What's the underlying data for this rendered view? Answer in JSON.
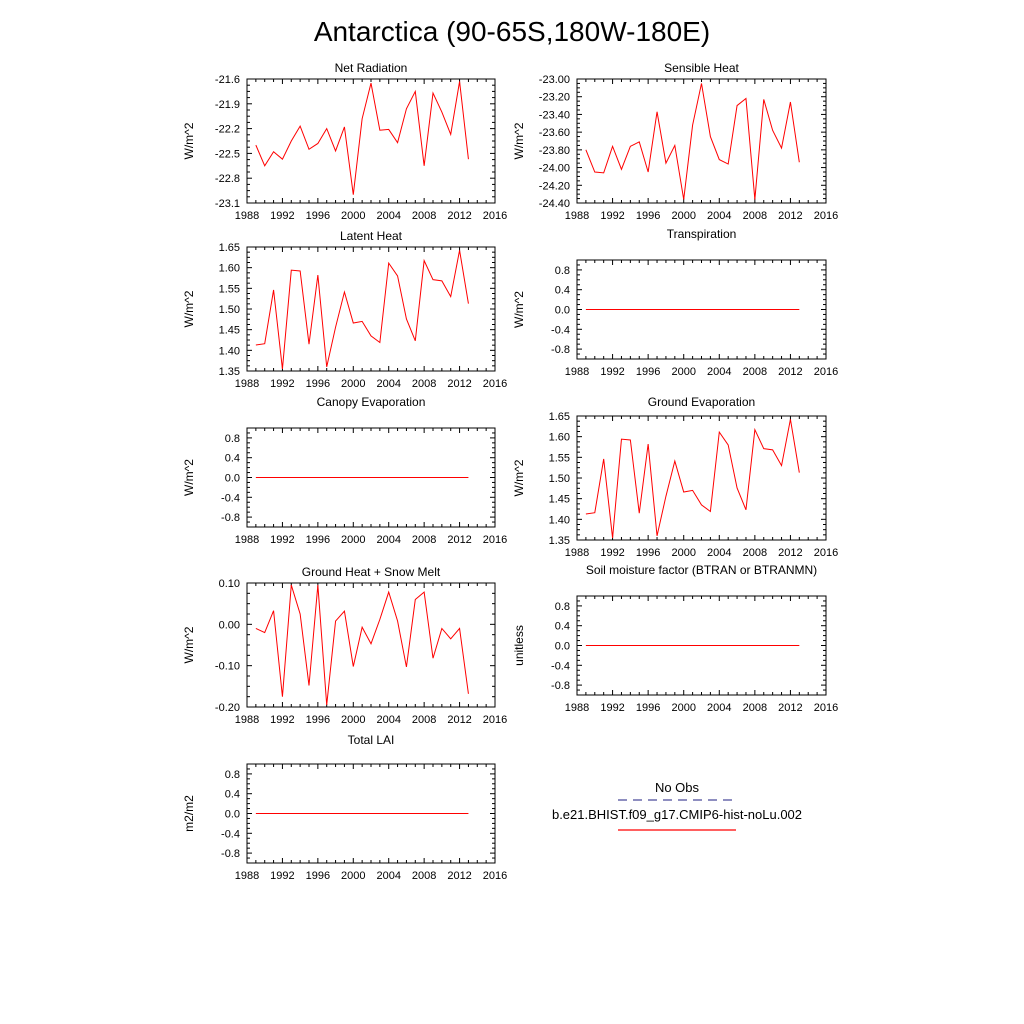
{
  "title": "Antarctica (90-65S,180W-180E)",
  "colors": {
    "line": "#ff0000",
    "obs": "#4a4a9a",
    "axis": "#000000"
  },
  "legend": {
    "obs_label": "No Obs",
    "model_label": "b.e21.BHIST.f09_g17.CMIP6-hist-noLu.002"
  },
  "chart_data": [
    {
      "type": "line",
      "title": "Net Radiation",
      "ylabel": "W/m^2",
      "xlim": [
        1988,
        2016
      ],
      "ylim": [
        -23.1,
        -21.6
      ],
      "xticks": [
        1988,
        1992,
        1996,
        2000,
        2004,
        2008,
        2012,
        2016
      ],
      "yticks": [
        -21.6,
        -21.9,
        -22.2,
        -22.5,
        -22.8,
        -23.1
      ],
      "ytick_labels": [
        "-21.6",
        "-21.9",
        "-22.2",
        "-22.5",
        "-22.8",
        "-23.1"
      ],
      "series": [
        {
          "x": [
            1989,
            1990,
            1991,
            1992,
            1993,
            1994,
            1995,
            1996,
            1997,
            1998,
            1999,
            2000,
            2001,
            2002,
            2003,
            2004,
            2005,
            2006,
            2007,
            2008,
            2009,
            2010,
            2011,
            2012,
            2013
          ],
          "values": [
            -22.4,
            -22.65,
            -22.48,
            -22.57,
            -22.35,
            -22.17,
            -22.45,
            -22.38,
            -22.2,
            -22.47,
            -22.18,
            -23.0,
            -22.08,
            -21.65,
            -22.22,
            -22.21,
            -22.37,
            -21.96,
            -21.75,
            -22.65,
            -21.77,
            -22.0,
            -22.27,
            -21.63,
            -22.57
          ]
        }
      ]
    },
    {
      "type": "line",
      "title": "Sensible Heat",
      "ylabel": "W/m^2",
      "xlim": [
        1988,
        2016
      ],
      "ylim": [
        -24.4,
        -23.0
      ],
      "xticks": [
        1988,
        1992,
        1996,
        2000,
        2004,
        2008,
        2012,
        2016
      ],
      "yticks": [
        -23.0,
        -23.2,
        -23.4,
        -23.6,
        -23.8,
        -24.0,
        -24.2,
        -24.4
      ],
      "ytick_labels": [
        "-23.00",
        "-23.20",
        "-23.40",
        "-23.60",
        "-23.80",
        "-24.00",
        "-24.20",
        "-24.40"
      ],
      "series": [
        {
          "x": [
            1989,
            1990,
            1991,
            1992,
            1993,
            1994,
            1995,
            1996,
            1997,
            1998,
            1999,
            2000,
            2001,
            2002,
            2003,
            2004,
            2005,
            2006,
            2007,
            2008,
            2009,
            2010,
            2011,
            2012,
            2013
          ],
          "values": [
            -23.8,
            -24.05,
            -24.06,
            -23.76,
            -24.02,
            -23.76,
            -23.71,
            -24.05,
            -23.37,
            -23.95,
            -23.75,
            -24.36,
            -23.52,
            -23.05,
            -23.65,
            -23.91,
            -23.96,
            -23.3,
            -23.22,
            -24.36,
            -23.23,
            -23.58,
            -23.78,
            -23.26,
            -23.94
          ]
        }
      ]
    },
    {
      "type": "line",
      "title": "Latent Heat",
      "ylabel": "W/m^2",
      "xlim": [
        1988,
        2016
      ],
      "ylim": [
        1.35,
        1.65
      ],
      "xticks": [
        1988,
        1992,
        1996,
        2000,
        2004,
        2008,
        2012,
        2016
      ],
      "yticks": [
        1.35,
        1.4,
        1.45,
        1.5,
        1.55,
        1.6,
        1.65
      ],
      "ytick_labels": [
        "1.35",
        "1.40",
        "1.45",
        "1.50",
        "1.55",
        "1.60",
        "1.65"
      ],
      "series": [
        {
          "x": [
            1989,
            1990,
            1991,
            1992,
            1993,
            1994,
            1995,
            1996,
            1997,
            1998,
            1999,
            2000,
            2001,
            2002,
            2003,
            2004,
            2005,
            2006,
            2007,
            2008,
            2009,
            2010,
            2011,
            2012,
            2013
          ],
          "values": [
            1.413,
            1.416,
            1.546,
            1.355,
            1.594,
            1.592,
            1.415,
            1.582,
            1.36,
            1.456,
            1.541,
            1.466,
            1.47,
            1.435,
            1.419,
            1.611,
            1.58,
            1.476,
            1.423,
            1.617,
            1.571,
            1.568,
            1.53,
            1.642,
            1.513
          ]
        }
      ]
    },
    {
      "type": "line",
      "title": "Transpiration",
      "ylabel": "W/m^2",
      "xlim": [
        1988,
        2016
      ],
      "ylim": [
        -1.0,
        1.0
      ],
      "xticks": [
        1988,
        1992,
        1996,
        2000,
        2004,
        2008,
        2012,
        2016
      ],
      "yticks": [
        0.8,
        0.4,
        0.0,
        -0.4,
        -0.8
      ],
      "ytick_labels": [
        "0.8",
        "0.4",
        "0.0",
        "-0.4",
        "-0.8"
      ],
      "series": [
        {
          "x": [
            1989,
            1990,
            1991,
            1992,
            1993,
            1994,
            1995,
            1996,
            1997,
            1998,
            1999,
            2000,
            2001,
            2002,
            2003,
            2004,
            2005,
            2006,
            2007,
            2008,
            2009,
            2010,
            2011,
            2012,
            2013
          ],
          "values": [
            0,
            0,
            0,
            0,
            0,
            0,
            0,
            0,
            0,
            0,
            0,
            0,
            0,
            0,
            0,
            0,
            0,
            0,
            0,
            0,
            0,
            0,
            0,
            0,
            0
          ]
        }
      ]
    },
    {
      "type": "line",
      "title": "Canopy Evaporation",
      "ylabel": "W/m^2",
      "xlim": [
        1988,
        2016
      ],
      "ylim": [
        -1.0,
        1.0
      ],
      "xticks": [
        1988,
        1992,
        1996,
        2000,
        2004,
        2008,
        2012,
        2016
      ],
      "yticks": [
        0.8,
        0.4,
        0.0,
        -0.4,
        -0.8
      ],
      "ytick_labels": [
        "0.8",
        "0.4",
        "0.0",
        "-0.4",
        "-0.8"
      ],
      "series": [
        {
          "x": [
            1989,
            1990,
            1991,
            1992,
            1993,
            1994,
            1995,
            1996,
            1997,
            1998,
            1999,
            2000,
            2001,
            2002,
            2003,
            2004,
            2005,
            2006,
            2007,
            2008,
            2009,
            2010,
            2011,
            2012,
            2013
          ],
          "values": [
            0,
            0,
            0,
            0,
            0,
            0,
            0,
            0,
            0,
            0,
            0,
            0,
            0,
            0,
            0,
            0,
            0,
            0,
            0,
            0,
            0,
            0,
            0,
            0,
            0
          ]
        }
      ]
    },
    {
      "type": "line",
      "title": "Ground Evaporation",
      "ylabel": "W/m^2",
      "xlim": [
        1988,
        2016
      ],
      "ylim": [
        1.35,
        1.65
      ],
      "xticks": [
        1988,
        1992,
        1996,
        2000,
        2004,
        2008,
        2012,
        2016
      ],
      "yticks": [
        1.35,
        1.4,
        1.45,
        1.5,
        1.55,
        1.6,
        1.65
      ],
      "ytick_labels": [
        "1.35",
        "1.40",
        "1.45",
        "1.50",
        "1.55",
        "1.60",
        "1.65"
      ],
      "series": [
        {
          "x": [
            1989,
            1990,
            1991,
            1992,
            1993,
            1994,
            1995,
            1996,
            1997,
            1998,
            1999,
            2000,
            2001,
            2002,
            2003,
            2004,
            2005,
            2006,
            2007,
            2008,
            2009,
            2010,
            2011,
            2012,
            2013
          ],
          "values": [
            1.413,
            1.416,
            1.546,
            1.355,
            1.594,
            1.592,
            1.415,
            1.582,
            1.36,
            1.456,
            1.541,
            1.466,
            1.47,
            1.435,
            1.419,
            1.611,
            1.58,
            1.476,
            1.423,
            1.617,
            1.571,
            1.568,
            1.53,
            1.642,
            1.513
          ]
        }
      ]
    },
    {
      "type": "line",
      "title": "Ground Heat + Snow Melt",
      "ylabel": "W/m^2",
      "xlim": [
        1988,
        2016
      ],
      "ylim": [
        -0.2,
        0.1
      ],
      "xticks": [
        1988,
        1992,
        1996,
        2000,
        2004,
        2008,
        2012,
        2016
      ],
      "yticks": [
        0.1,
        0.0,
        -0.1,
        -0.2
      ],
      "ytick_labels": [
        "0.10",
        "0.00",
        "-0.10",
        "-0.20"
      ],
      "series": [
        {
          "x": [
            1989,
            1990,
            1991,
            1992,
            1993,
            1994,
            1995,
            1996,
            1997,
            1998,
            1999,
            2000,
            2001,
            2002,
            2003,
            2004,
            2005,
            2006,
            2007,
            2008,
            2009,
            2010,
            2011,
            2012,
            2013
          ],
          "values": [
            -0.01,
            -0.02,
            0.033,
            -0.175,
            0.095,
            0.025,
            -0.148,
            0.095,
            -0.195,
            0.008,
            0.032,
            -0.102,
            -0.007,
            -0.047,
            0.012,
            0.078,
            0.008,
            -0.103,
            0.06,
            0.078,
            -0.082,
            -0.01,
            -0.035,
            -0.01,
            -0.168
          ]
        }
      ]
    },
    {
      "type": "line",
      "title": "Soil moisture factor (BTRAN or BTRANMN)",
      "ylabel": "unitless",
      "xlim": [
        1988,
        2016
      ],
      "ylim": [
        -1.0,
        1.0
      ],
      "xticks": [
        1988,
        1992,
        1996,
        2000,
        2004,
        2008,
        2012,
        2016
      ],
      "yticks": [
        0.8,
        0.4,
        0.0,
        -0.4,
        -0.8
      ],
      "ytick_labels": [
        "0.8",
        "0.4",
        "0.0",
        "-0.4",
        "-0.8"
      ],
      "series": [
        {
          "x": [
            1989,
            1990,
            1991,
            1992,
            1993,
            1994,
            1995,
            1996,
            1997,
            1998,
            1999,
            2000,
            2001,
            2002,
            2003,
            2004,
            2005,
            2006,
            2007,
            2008,
            2009,
            2010,
            2011,
            2012,
            2013
          ],
          "values": [
            0,
            0,
            0,
            0,
            0,
            0,
            0,
            0,
            0,
            0,
            0,
            0,
            0,
            0,
            0,
            0,
            0,
            0,
            0,
            0,
            0,
            0,
            0,
            0,
            0
          ]
        }
      ]
    },
    {
      "type": "line",
      "title": "Total LAI",
      "ylabel": "m2/m2",
      "xlim": [
        1988,
        2016
      ],
      "ylim": [
        -1.0,
        1.0
      ],
      "xticks": [
        1988,
        1992,
        1996,
        2000,
        2004,
        2008,
        2012,
        2016
      ],
      "yticks": [
        0.8,
        0.4,
        0.0,
        -0.4,
        -0.8
      ],
      "ytick_labels": [
        "0.8",
        "0.4",
        "0.0",
        "-0.4",
        "-0.8"
      ],
      "series": [
        {
          "x": [
            1989,
            1990,
            1991,
            1992,
            1993,
            1994,
            1995,
            1996,
            1997,
            1998,
            1999,
            2000,
            2001,
            2002,
            2003,
            2004,
            2005,
            2006,
            2007,
            2008,
            2009,
            2010,
            2011,
            2012,
            2013
          ],
          "values": [
            0,
            0,
            0,
            0,
            0,
            0,
            0,
            0,
            0,
            0,
            0,
            0,
            0,
            0,
            0,
            0,
            0,
            0,
            0,
            0,
            0,
            0,
            0,
            0,
            0
          ]
        }
      ]
    }
  ]
}
